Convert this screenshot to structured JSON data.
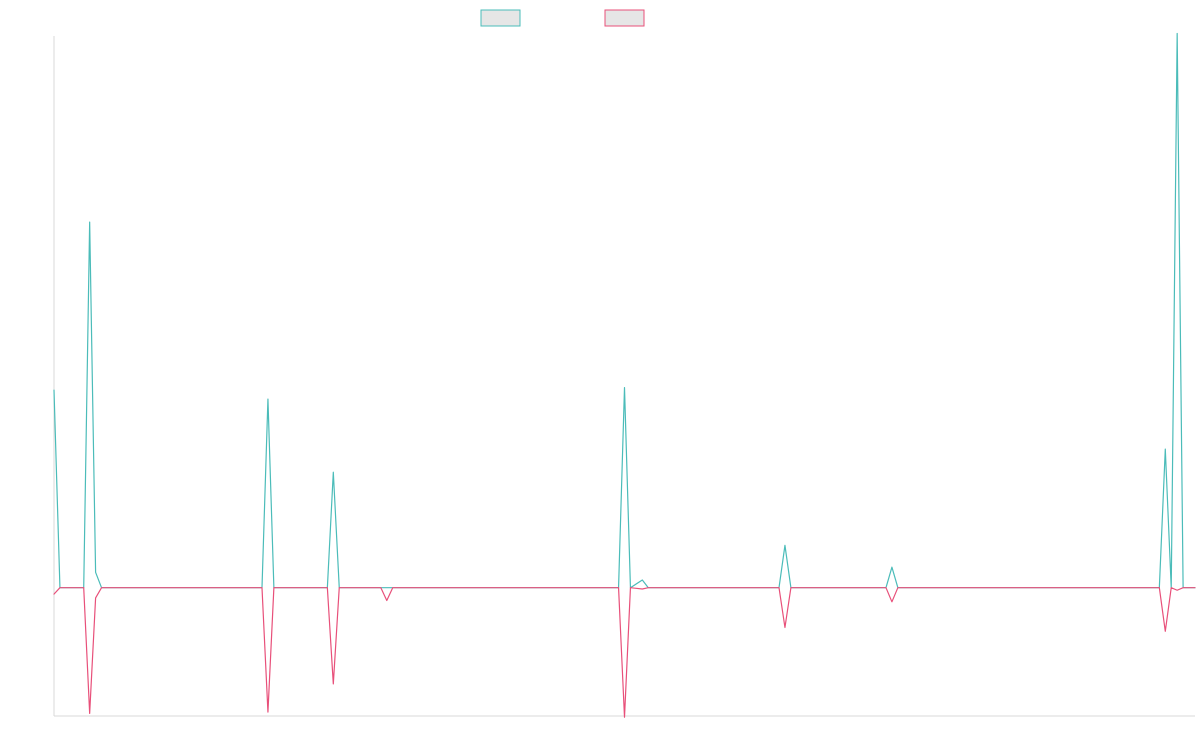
{
  "chart_data": {
    "type": "line",
    "title": "",
    "xlabel": "",
    "ylabel": "",
    "grid": false,
    "legend_position": "top-center",
    "x_count": 193,
    "ylim": [
      -100,
      430
    ],
    "series": [
      {
        "color": "#4bbcb9",
        "points": [
          [
            0,
            154
          ],
          [
            1,
            0
          ],
          [
            5,
            0
          ],
          [
            6,
            285
          ],
          [
            7,
            12
          ],
          [
            8,
            0
          ],
          [
            35,
            0
          ],
          [
            36,
            147
          ],
          [
            37,
            0
          ],
          [
            46,
            0
          ],
          [
            47,
            90
          ],
          [
            48,
            0
          ],
          [
            95,
            0
          ],
          [
            96,
            156
          ],
          [
            97,
            0
          ],
          [
            99,
            6
          ],
          [
            100,
            0
          ],
          [
            122,
            0
          ],
          [
            123,
            33
          ],
          [
            124,
            0
          ],
          [
            140,
            0
          ],
          [
            141,
            16
          ],
          [
            142,
            0
          ],
          [
            186,
            0
          ],
          [
            187,
            108
          ],
          [
            188,
            0
          ],
          [
            189,
            432
          ],
          [
            190,
            0
          ],
          [
            192,
            0
          ]
        ]
      },
      {
        "color": "#e8507a",
        "points": [
          [
            0,
            -5
          ],
          [
            1,
            0
          ],
          [
            5,
            0
          ],
          [
            6,
            -98
          ],
          [
            7,
            -8
          ],
          [
            8,
            0
          ],
          [
            35,
            0
          ],
          [
            36,
            -97
          ],
          [
            37,
            0
          ],
          [
            46,
            0
          ],
          [
            47,
            -75
          ],
          [
            48,
            0
          ],
          [
            55,
            0
          ],
          [
            56,
            -10
          ],
          [
            57,
            0
          ],
          [
            95,
            0
          ],
          [
            96,
            -101
          ],
          [
            97,
            0
          ],
          [
            99,
            -1
          ],
          [
            100,
            0
          ],
          [
            122,
            0
          ],
          [
            123,
            -31
          ],
          [
            124,
            0
          ],
          [
            140,
            0
          ],
          [
            141,
            -11
          ],
          [
            142,
            0
          ],
          [
            186,
            0
          ],
          [
            187,
            -34
          ],
          [
            188,
            0
          ],
          [
            189,
            -2
          ],
          [
            190,
            0
          ],
          [
            192,
            0
          ]
        ]
      }
    ]
  }
}
